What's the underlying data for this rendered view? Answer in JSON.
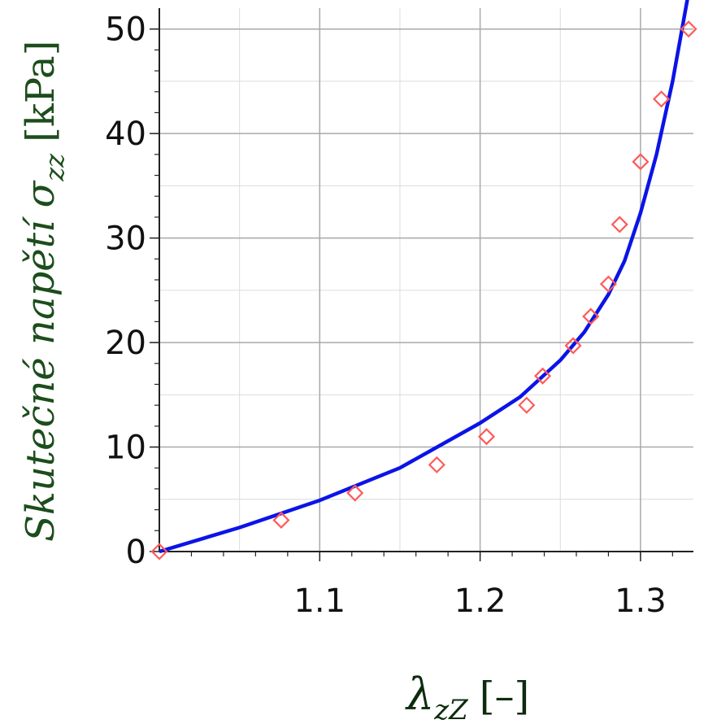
{
  "chart_data": {
    "type": "scatter",
    "xlabel": {
      "symbol": "λ",
      "subscript": "zZ",
      "unit": "[–]"
    },
    "ylabel": {
      "text": "Skutečné napětí σ",
      "subscript": "zz",
      "unit": "[kPa]"
    },
    "xlim": [
      1.0,
      1.333
    ],
    "ylim": [
      0,
      52
    ],
    "x_ticks": [
      1.1,
      1.2,
      1.3
    ],
    "x_tick_labels": [
      "1.1",
      "1.2",
      "1.3"
    ],
    "y_ticks": [
      0,
      10,
      20,
      30,
      40,
      50
    ],
    "y_tick_labels": [
      "0",
      "10",
      "20",
      "30",
      "40",
      "50"
    ],
    "grid": true,
    "series": [
      {
        "kind": "markers",
        "marker": "diamond",
        "color": "#ff5a5a",
        "x": [
          1.0,
          1.076,
          1.122,
          1.173,
          1.204,
          1.229,
          1.239,
          1.258,
          1.269,
          1.28,
          1.287,
          1.3,
          1.313,
          1.33
        ],
        "y": [
          0.0,
          3.0,
          5.6,
          8.3,
          11.0,
          14.0,
          16.8,
          19.7,
          22.5,
          25.6,
          31.3,
          37.3,
          43.3,
          50.0
        ]
      },
      {
        "kind": "line",
        "color": "#0b14e6",
        "x": [
          1.0,
          1.05,
          1.1,
          1.15,
          1.2,
          1.225,
          1.25,
          1.265,
          1.28,
          1.29,
          1.3,
          1.31,
          1.32,
          1.33
        ],
        "y": [
          0.0,
          2.3,
          4.9,
          8.0,
          12.3,
          14.8,
          18.3,
          21.0,
          24.6,
          27.8,
          32.4,
          38.0,
          45.0,
          53.5
        ]
      }
    ]
  }
}
